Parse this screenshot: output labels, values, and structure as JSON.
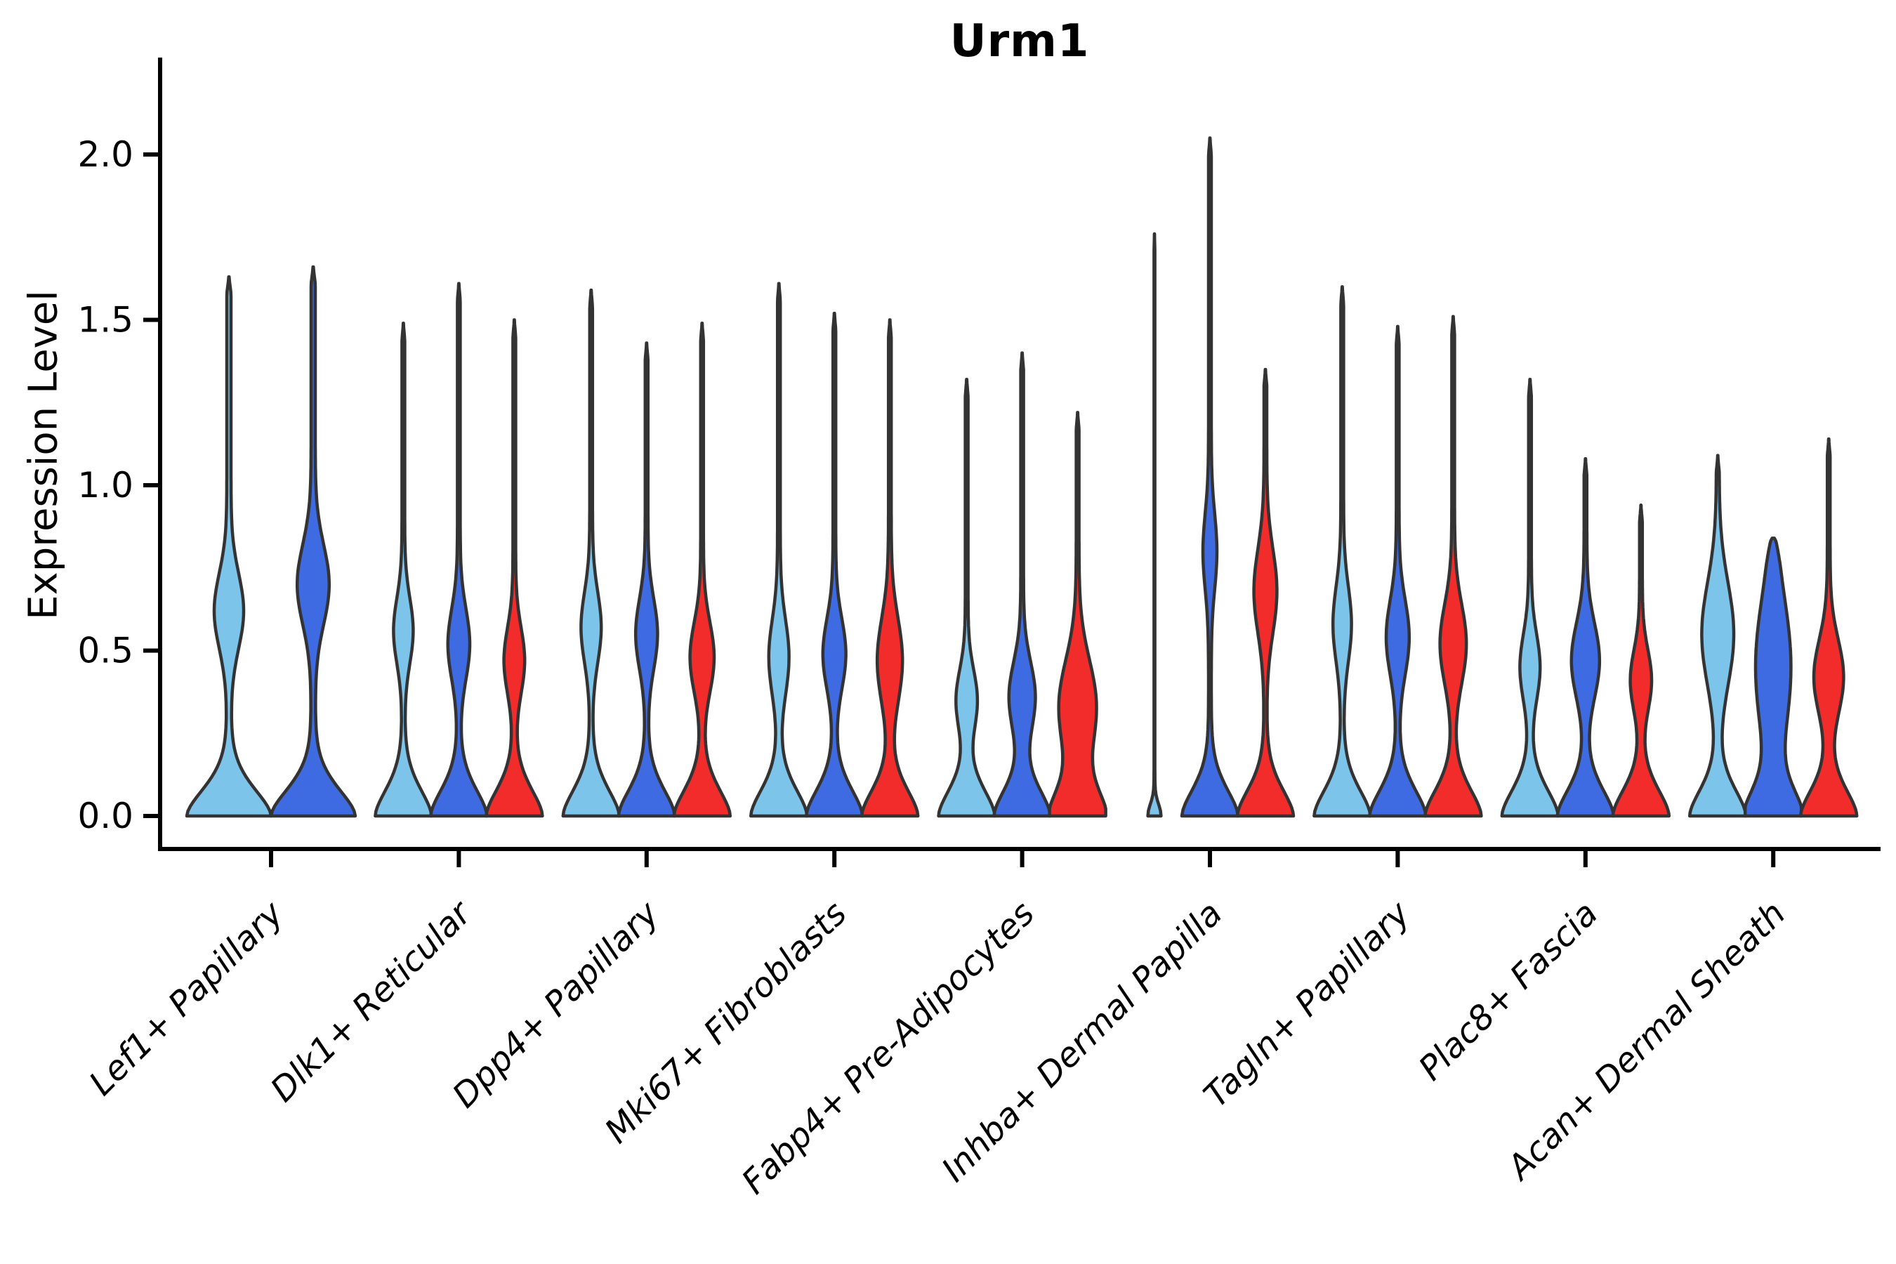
{
  "title": "Urm1",
  "chart_data": {
    "type": "violin",
    "title": "Urm1",
    "xlabel": "",
    "ylabel": "Expression Level",
    "ytick_labels": [
      "0.0",
      "0.5",
      "1.0",
      "1.5",
      "2.0"
    ],
    "ytick_values": [
      0.0,
      0.5,
      1.0,
      1.5,
      2.0
    ],
    "ylim": [
      -0.1,
      2.29
    ],
    "grid": false,
    "legend": "none",
    "series": [
      {
        "key": "light_blue",
        "color": "#7CC4EA"
      },
      {
        "key": "dark_blue",
        "color": "#3E6BE2"
      },
      {
        "key": "red",
        "color": "#F22B2B"
      }
    ],
    "edge_color": "#333333",
    "axis_color": "#000000",
    "categories": [
      "Lef1+ Papillary",
      "Dlk1+ Reticular",
      "Dpp4+ Papillary",
      "Mki67+ Fibroblasts",
      "Fabp4+ Pre-Adipocytes",
      "Inhba+ Dermal Papilla",
      "Tagln+ Papillary",
      "Plac8+ Fascia",
      "Acan+ Dermal Sheath"
    ],
    "groups": [
      {
        "label": "Lef1+ Papillary",
        "violins": [
          {
            "series": "light_blue",
            "max": 1.63,
            "bulge_center": 0.62,
            "bulge_sigma": 0.16,
            "bulge_width": 0.3
          },
          {
            "series": "dark_blue",
            "max": 1.66,
            "bulge_center": 0.7,
            "bulge_sigma": 0.17,
            "bulge_width": 0.33
          }
        ]
      },
      {
        "label": "Dlk1+ Reticular",
        "violins": [
          {
            "series": "light_blue",
            "max": 1.49,
            "bulge_center": 0.56,
            "bulge_sigma": 0.14,
            "bulge_width": 0.3
          },
          {
            "series": "dark_blue",
            "max": 1.61,
            "bulge_center": 0.52,
            "bulge_sigma": 0.15,
            "bulge_width": 0.34
          },
          {
            "series": "red",
            "max": 1.5,
            "bulge_center": 0.47,
            "bulge_sigma": 0.14,
            "bulge_width": 0.32
          }
        ]
      },
      {
        "label": "Dpp4+ Papillary",
        "violins": [
          {
            "series": "light_blue",
            "max": 1.59,
            "bulge_center": 0.57,
            "bulge_sigma": 0.15,
            "bulge_width": 0.31
          },
          {
            "series": "dark_blue",
            "max": 1.43,
            "bulge_center": 0.55,
            "bulge_sigma": 0.15,
            "bulge_width": 0.34
          },
          {
            "series": "red",
            "max": 1.49,
            "bulge_center": 0.48,
            "bulge_sigma": 0.15,
            "bulge_width": 0.38
          }
        ]
      },
      {
        "label": "Mki67+ Fibroblasts",
        "violins": [
          {
            "series": "light_blue",
            "max": 1.61,
            "bulge_center": 0.48,
            "bulge_sigma": 0.16,
            "bulge_width": 0.31
          },
          {
            "series": "dark_blue",
            "max": 1.52,
            "bulge_center": 0.49,
            "bulge_sigma": 0.15,
            "bulge_width": 0.36
          },
          {
            "series": "red",
            "max": 1.5,
            "bulge_center": 0.47,
            "bulge_sigma": 0.18,
            "bulge_width": 0.4
          }
        ]
      },
      {
        "label": "Fabp4+ Pre-Adipocytes",
        "violins": [
          {
            "series": "light_blue",
            "max": 1.32,
            "bulge_center": 0.35,
            "bulge_sigma": 0.13,
            "bulge_width": 0.33
          },
          {
            "series": "dark_blue",
            "max": 1.4,
            "bulge_center": 0.36,
            "bulge_sigma": 0.15,
            "bulge_width": 0.42
          },
          {
            "series": "red",
            "max": 1.22,
            "bulge_center": 0.33,
            "bulge_sigma": 0.2,
            "bulge_width": 0.62
          }
        ]
      },
      {
        "label": "Inhba+ Dermal Papilla",
        "violins": [
          {
            "series": "light_blue",
            "max": 1.76,
            "collapsed": true
          },
          {
            "series": "dark_blue",
            "max": 2.05,
            "bulge_center": 0.8,
            "bulge_sigma": 0.16,
            "bulge_width": 0.2
          },
          {
            "series": "red",
            "max": 1.35,
            "bulge_center": 0.68,
            "bulge_sigma": 0.18,
            "bulge_width": 0.36
          }
        ]
      },
      {
        "label": "Tagln+ Papillary",
        "violins": [
          {
            "series": "light_blue",
            "max": 1.6,
            "bulge_center": 0.58,
            "bulge_sigma": 0.16,
            "bulge_width": 0.28
          },
          {
            "series": "dark_blue",
            "max": 1.48,
            "bulge_center": 0.54,
            "bulge_sigma": 0.16,
            "bulge_width": 0.36
          },
          {
            "series": "red",
            "max": 1.51,
            "bulge_center": 0.52,
            "bulge_sigma": 0.17,
            "bulge_width": 0.42
          }
        ]
      },
      {
        "label": "Plac8+ Fascia",
        "violins": [
          {
            "series": "light_blue",
            "max": 1.32,
            "bulge_center": 0.45,
            "bulge_sigma": 0.14,
            "bulge_width": 0.31
          },
          {
            "series": "dark_blue",
            "max": 1.08,
            "bulge_center": 0.47,
            "bulge_sigma": 0.16,
            "bulge_width": 0.45
          },
          {
            "series": "red",
            "max": 0.94,
            "bulge_center": 0.41,
            "bulge_sigma": 0.13,
            "bulge_width": 0.33
          }
        ]
      },
      {
        "label": "Acan+ Dermal Sheath",
        "violins": [
          {
            "series": "light_blue",
            "max": 1.09,
            "bulge_center": 0.55,
            "bulge_sigma": 0.22,
            "bulge_width": 0.52
          },
          {
            "series": "dark_blue",
            "max": 0.84,
            "blunt": true,
            "bulge_center": 0.45,
            "bulge_sigma": 0.3,
            "bulge_width": 0.58
          },
          {
            "series": "red",
            "max": 1.14,
            "bulge_center": 0.42,
            "bulge_sigma": 0.16,
            "bulge_width": 0.48
          }
        ]
      }
    ]
  }
}
